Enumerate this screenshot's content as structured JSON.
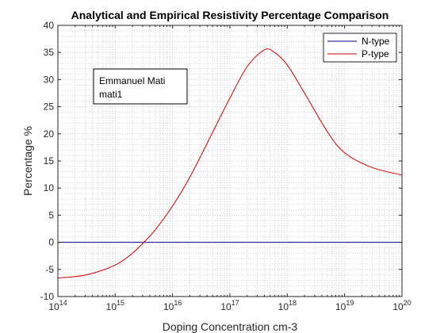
{
  "chart_data": {
    "type": "line",
    "title": "Analytical and Empirical Resistivity Percentage Comparison",
    "xlabel": "Doping Concentration cm-3",
    "ylabel": "Percentage %",
    "xscale": "log",
    "xlim": [
      100000000000000.0,
      1e+20
    ],
    "ylim": [
      -10,
      40
    ],
    "xtick_exponents": [
      14,
      15,
      16,
      17,
      18,
      19,
      20
    ],
    "xtick_base": "10",
    "yticks": [
      -10,
      -5,
      0,
      5,
      10,
      15,
      20,
      25,
      30,
      35,
      40
    ],
    "grid": "on (major and minor, dotted)",
    "legend_position": "top-right",
    "annotation": [
      "Emmanuel Mati",
      "mati1"
    ],
    "series": [
      {
        "name": "N-type",
        "color": "#00008b",
        "x": [
          100000000000000.0,
          1000000000000000.0,
          1e+16,
          1e+17,
          1e+18,
          1e+19,
          1e+20
        ],
        "y": [
          0,
          0,
          0,
          0,
          0,
          0,
          0
        ]
      },
      {
        "name": "P-type",
        "color": "#cc0000",
        "x": [
          100000000000000.0,
          316000000000000.0,
          1000000000000000.0,
          2000000000000000.0,
          3160000000000000.0,
          5000000000000000.0,
          1e+16,
          2e+16,
          5e+16,
          1e+17,
          2e+17,
          4e+17,
          6e+17,
          1e+18,
          2e+18,
          5e+18,
          1e+19,
          3e+19,
          1e+20
        ],
        "y": [
          -6.6,
          -6.0,
          -4.2,
          -2.0,
          0.0,
          2.3,
          6.7,
          12.0,
          20.3,
          26.6,
          32.4,
          35.5,
          35.0,
          32.7,
          27.5,
          20.4,
          16.5,
          13.8,
          12.4
        ]
      }
    ]
  }
}
